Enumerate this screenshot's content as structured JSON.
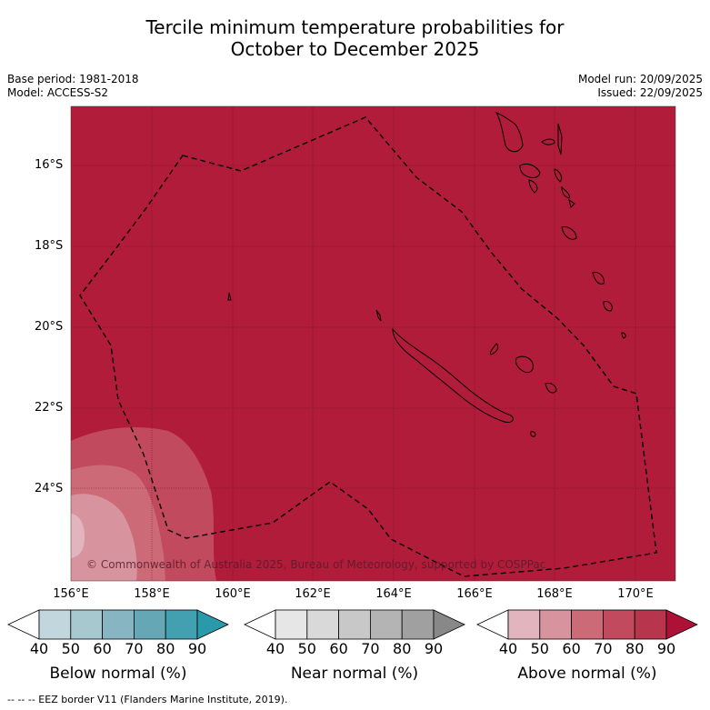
{
  "title_line1": "Tercile minimum temperature probabilities for",
  "title_line2": "October to December 2025",
  "base_period": "Base period: 1981-2018",
  "model": "Model: ACCESS-S2",
  "model_run": "Model run: 20/09/2025",
  "issued": "Issued: 22/09/2025",
  "copyright": "© Commonwealth of Australia 2025, Bureau of Meteorology, supported by COSPPac",
  "footer": "--  --  -- EEZ border V11 (Flanders Marine Institute, 2019).",
  "map": {
    "lon_range": [
      156.0,
      171.0
    ],
    "lat_range": [
      -26.0,
      -14.7
    ],
    "lat_labels": [
      "16°S",
      "18°S",
      "20°S",
      "22°S",
      "24°S"
    ],
    "lon_labels": [
      "156°E",
      "158°E",
      "160°E",
      "162°E",
      "164°E",
      "166°E",
      "168°E",
      "170°E"
    ],
    "dominant_category": "Above normal",
    "dominant_probability": "80-90%",
    "colors": {
      "above_90": "#b01c3a",
      "above_80": "#c24a5e",
      "above_70": "#cc6a78",
      "above_60": "#d8949e"
    }
  },
  "colorbars": [
    {
      "title": "Below normal (%)",
      "ticks": [
        "40",
        "50",
        "60",
        "70",
        "80",
        "90"
      ],
      "colors": [
        "#ffffff",
        "#c2d6dd",
        "#a7c8ce",
        "#87b5c1",
        "#66a7b6",
        "#43a0b0",
        "#2a9aaa"
      ]
    },
    {
      "title": "Near normal (%)",
      "ticks": [
        "40",
        "50",
        "60",
        "70",
        "80",
        "90"
      ],
      "colors": [
        "#ffffff",
        "#e6e6e6",
        "#d9d9d9",
        "#c8c8c8",
        "#b4b4b4",
        "#a0a0a0",
        "#888888"
      ]
    },
    {
      "title": "Above normal (%)",
      "ticks": [
        "40",
        "50",
        "60",
        "70",
        "80",
        "90"
      ],
      "colors": [
        "#ffffff",
        "#e2b4bd",
        "#d8949e",
        "#cc6a78",
        "#c24a5e",
        "#b7354d",
        "#ad1236"
      ]
    }
  ]
}
